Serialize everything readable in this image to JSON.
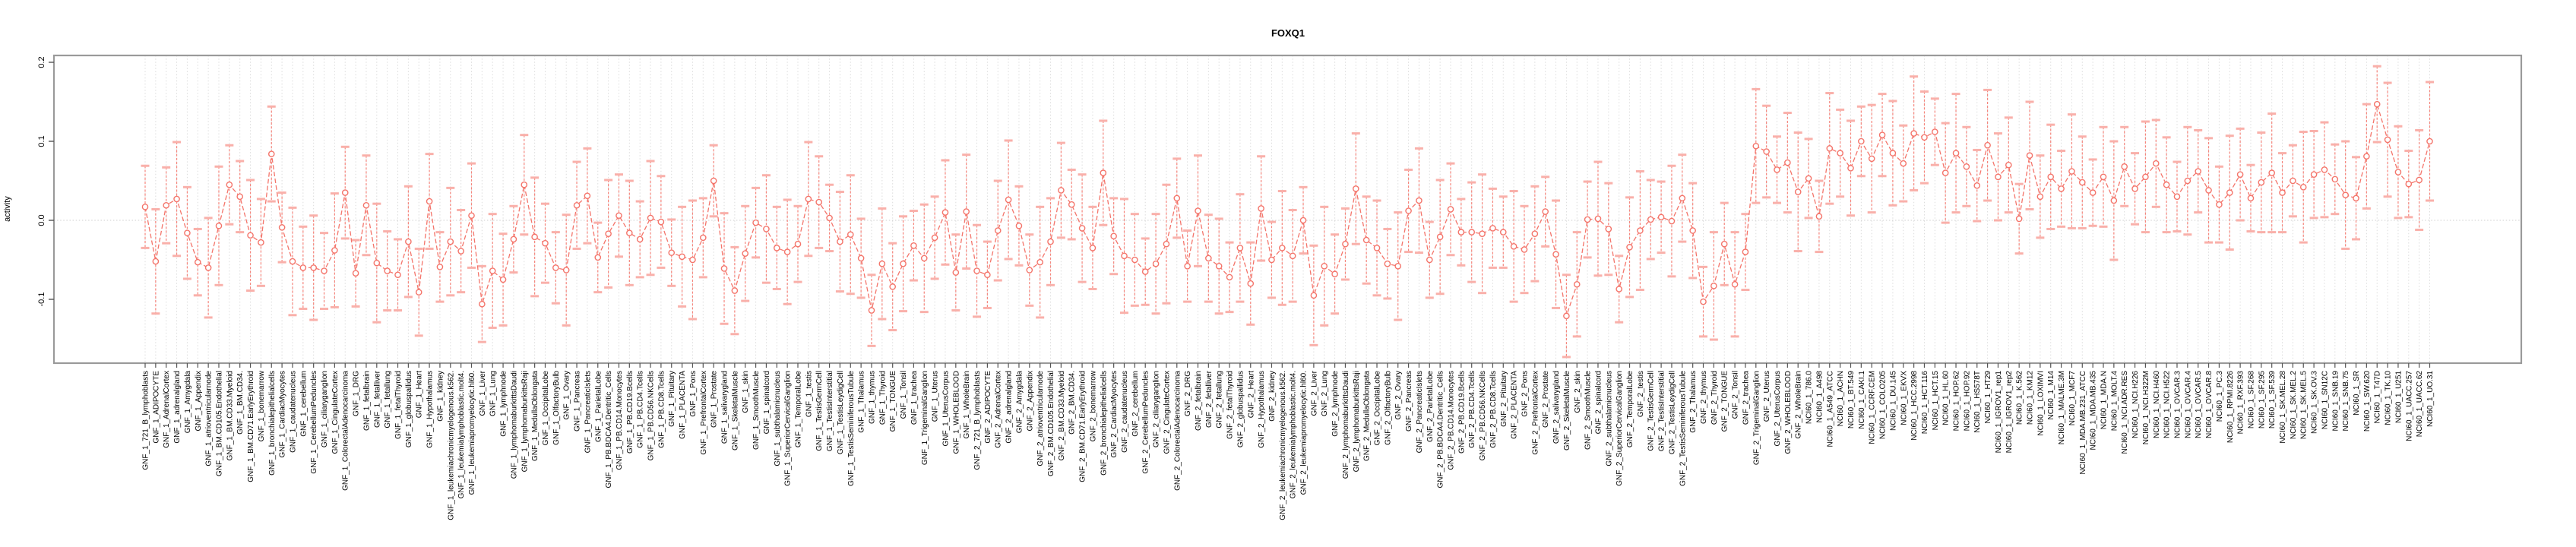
{
  "title": "FOXQ1",
  "chart_data": {
    "type": "scatter",
    "title": "FOXQ1",
    "xlabel": "",
    "ylabel": "activity",
    "ylim": [
      -0.18,
      0.21
    ],
    "yticks": [
      0.2,
      0.1,
      0.0,
      -0.1
    ],
    "ytick_labels": [
      "0.2",
      "0.1",
      "0.0",
      "-0.1"
    ],
    "grid": "dotted vertical gridline at every category; dotted horizontal line at y=0",
    "legend": "none",
    "marker": "open-circle with dashed error bars and capped whiskers, connected by line",
    "point_color": "#f4756b",
    "error_cap_color": "#f9b0aa",
    "error_line_color": "#f6867d",
    "grid_color": "#dcdcdc",
    "border_color": "#9a9a9a",
    "categories": [
      "GNF_1_721_B_lymphoblasts",
      "GNF_1_ADIPOCYTE",
      "GNF_1_AdrenalCortex",
      "GNF_1_adrenalgland",
      "GNF_1_Amygdala",
      "GNF_1_Appendix",
      "GNF_1_atrioventricularnode",
      "GNF_1_BM.CD105.Endothelial",
      "GNF_1_BM.CD33.Myeloid",
      "GNF_1_BM.CD34.",
      "GNF_1_BM.CD71.EarlyErythroid",
      "GNF_1_bonemarrow",
      "GNF_1_bronchialepithelialcells",
      "GNF_1_CardiacMyocytes",
      "GNF_1_caudatenucleus",
      "GNF_1_cerebellum",
      "GNF_1_CerebellumPeduncles",
      "GNF_1_ciliaryganglion",
      "GNF_1_CingulateCortex",
      "GNF_1_ColorectalAdenocarcinoma",
      "GNF_1_DRG",
      "GNF_1_fetalbrain",
      "GNF_1_fetalliver",
      "GNF_1_fetallung",
      "GNF_1_fetalThyroid",
      "GNF_1_globuspallidus",
      "GNF_1_Heart",
      "GNF_1_Hypothalamus",
      "GNF_1_kidney",
      "GNF_1_leukemiachronicmyelogenous.k562.",
      "GNF_1_leukemialymphoblastic.molt4.",
      "GNF_1_leukemiapromyelocytic.hl60.",
      "GNF_1_Liver",
      "GNF_1_Lung",
      "GNF_1_lymphnode",
      "GNF_1_lymphomaburkittsDaudi",
      "GNF_1_lymphomaburkittsRaji",
      "GNF_1_MedullaOblongata",
      "GNF_1_OccipitalLobe",
      "GNF_1_OlfactoryBulb",
      "GNF_1_Ovary",
      "GNF_1_Pancreas",
      "GNF_1_PancreaticIslets",
      "GNF_1_ParietalLobe",
      "GNF_1_PB.BDCA4.Dentritic_Cells",
      "GNF_1_PB.CD14.Monocytes",
      "GNF_1_PB.CD19.Bcells",
      "GNF_1_PB.CD4.Tcells",
      "GNF_1_PB.CD56.NKCells",
      "GNF_1_PB.CD8.Tcells",
      "GNF_1_Pituitary",
      "GNF_1_PLACENTA",
      "GNF_1_Pons",
      "GNF_1_PrefrontalCortex",
      "GNF_1_Prostate",
      "GNF_1_salivarygland",
      "GNF_1_SkeletalMuscle",
      "GNF_1_skin",
      "GNF_1_SmoothMuscle",
      "GNF_1_spinalcord",
      "GNF_1_subthalamicnucleus",
      "GNF_1_SuperiorCervicalGanglion",
      "GNF_1_TemporalLobe",
      "GNF_1_testis",
      "GNF_1_TestisGermCell",
      "GNF_1_TestisInterstitial",
      "GNF_1_TestisLeydigCell",
      "GNF_1_TestisSeminiferousTubule",
      "GNF_1_Thalamus",
      "GNF_1_thymus",
      "GNF_1_Thyroid",
      "GNF_1_TONGUE",
      "GNF_1_Tonsil",
      "GNF_1_trachea",
      "GNF_1_TrigeminalGanglion",
      "GNF_1_Uterus",
      "GNF_1_UterusCorpus",
      "GNF_1_WHOLEBLOOD",
      "GNF_1_WholeBrain",
      "GNF_2_721_B_lymphoblasts",
      "GNF_2_ADIPOCYTE",
      "GNF_2_AdrenalCortex",
      "GNF_2_adrenalgland",
      "GNF_2_Amygdala",
      "GNF_2_Appendix",
      "GNF_2_atrioventricularnode",
      "GNF_2_BM.CD105.Endothelial",
      "GNF_2_BM.CD33.Myeloid",
      "GNF_2_BM.CD34.",
      "GNF_2_BM.CD71.EarlyErythroid",
      "GNF_2_bonemarrow",
      "GNF_2_bronchialepithelialcells",
      "GNF_2_CardiacMyocytes",
      "GNF_2_caudatenucleus",
      "GNF_2_cerebellum",
      "GNF_2_CerebellumPeduncles",
      "GNF_2_ciliaryganglion",
      "GNF_2_CingulateCortex",
      "GNF_2_ColorectalAdenocarcinoma",
      "GNF_2_DRG",
      "GNF_2_fetalbrain",
      "GNF_2_fetalliver",
      "GNF_2_fetallung",
      "GNF_2_fetalThyroid",
      "GNF_2_globuspallidus",
      "GNF_2_Heart",
      "GNF_2_Hypothalamus",
      "GNF_2_kidney",
      "GNF_2_leukemiachronicmyelogenous.k562.",
      "GNF_2_leukemialymphoblastic.molt4.",
      "GNF_2_leukemiapromyelocytic.hl60.",
      "GNF_2_Liver",
      "GNF_2_Lung",
      "GNF_2_lymphnode",
      "GNF_2_lymphomaburkittsDaudi",
      "GNF_2_lymphomaburkittsRaji",
      "GNF_2_MedullaOblongata",
      "GNF_2_OccipitalLobe",
      "GNF_2_OlfactoryBulb",
      "GNF_2_Ovary",
      "GNF_2_Pancreas",
      "GNF_2_PancreaticIslets",
      "GNF_2_ParietalLobe",
      "GNF_2_PB.BDCA4.Dentritic_Cells",
      "GNF_2_PB.CD14.Monocytes",
      "GNF_2_PB.CD19.Bcells",
      "GNF_2_PB.CD4.Tcells",
      "GNF_2_PB.CD56.NKCells",
      "GNF_2_PB.CD8.Tcells",
      "GNF_2_Pituitary",
      "GNF_2_PLACENTA",
      "GNF_2_Pons",
      "GNF_2_PrefrontalCortex",
      "GNF_2_Prostate",
      "GNF_2_salivarygland",
      "GNF_2_SkeletalMuscle",
      "GNF_2_skin",
      "GNF_2_SmoothMuscle",
      "GNF_2_spinalcord",
      "GNF_2_subthalamicnucleus",
      "GNF_2_SuperiorCervicalGanglion",
      "GNF_2_TemporalLobe",
      "GNF_2_testis",
      "GNF_2_TestisGermCell",
      "GNF_2_TestisInterstitial",
      "GNF_2_TestisLeydigCell",
      "GNF_2_TestisSeminiferousTubule",
      "GNF_2_Thalamus",
      "GNF_2_thymus",
      "GNF_2_Thyroid",
      "GNF_2_TONGUE",
      "GNF_2_Tonsil",
      "GNF_2_trachea",
      "GNF_2_TrigeminalGanglion",
      "GNF_2_Uterus",
      "GNF_2_UterusCorpus",
      "GNF_2_WHOLEBLOOD",
      "GNF_2_WholeBrain",
      "NCI60_1_786.0",
      "NCI60_1_A498",
      "NCI60_1_A549_ATCC",
      "NCI60_1_ACHN",
      "NCI60_1_BT.549",
      "NCI60_1_CAKI.1",
      "NCI60_1_CCRF.CEM",
      "NCI60_1_COLO205",
      "NCI60_1_DU.145",
      "NCI60_1_EKVX",
      "NCI60_1_HCC.2998",
      "NCI60_1_HCT.116",
      "NCI60_1_HCT.15",
      "NCI60_1_HL.60",
      "NCI60_1_HOP.62",
      "NCI60_1_HOP.92",
      "NCI60_1_HS578T",
      "NCI60_1_HT29",
      "NCI60_1_IGROV1_rep1",
      "NCI60_1_IGROV1_rep2",
      "NCI60_1_K.562",
      "NCI60_1_KM12",
      "NCI60_1_LOXIMVI",
      "NCI60_1_M14",
      "NCI60_1_MALME.3M",
      "NCI60_1_MCF7",
      "NCI60_1_MDA.MB.231_ATCC",
      "NCI60_1_MDA.MB.435",
      "NCI60_1_MDA.N",
      "NCI60_1_MOLT.4",
      "NCI60_1_NCI.ADR.RES",
      "NCI60_1_NCI.H226",
      "NCI60_1_NCI.H322M",
      "NCI60_1_NCI.H460",
      "NCI60_1_NCI.H522",
      "NCI60_1_OVCAR.3",
      "NCI60_1_OVCAR.4",
      "NCI60_1_OVCAR.5",
      "NCI60_1_OVCAR.8",
      "NCI60_1_PC.3",
      "NCI60_1_RPMI.8226",
      "NCI60_1_RXF.393",
      "NCI60_1_SF.268",
      "NCI60_1_SF.295",
      "NCI60_1_SF.539",
      "NCI60_1_SK.MEL.28",
      "NCI60_1_SK.MEL.2",
      "NCI60_1_SK.MEL.5",
      "NCI60_1_SK.OV.3",
      "NCI60_1_SN12C",
      "NCI60_1_SNB.19",
      "NCI60_1_SNB.75",
      "NCI60_1_SR",
      "NCI60_1_SW.620",
      "NCI60_1_T47D",
      "NCI60_1_TK.10",
      "NCI60_1_U251",
      "NCI60_1_UACC.257",
      "NCI60_1_UACC.62",
      "NCI60_1_UO.31"
    ],
    "values": [
      0.017,
      -0.052,
      0.019,
      0.027,
      -0.016,
      -0.053,
      -0.06,
      -0.007,
      0.045,
      0.03,
      -0.019,
      -0.028,
      0.084,
      -0.009,
      -0.052,
      -0.06,
      -0.06,
      -0.064,
      -0.038,
      0.035,
      -0.067,
      0.019,
      -0.054,
      -0.064,
      -0.069,
      -0.027,
      -0.091,
      0.024,
      -0.059,
      -0.027,
      -0.039,
      0.006,
      -0.106,
      -0.064,
      -0.075,
      -0.024,
      0.045,
      -0.021,
      -0.029,
      -0.06,
      -0.063,
      0.019,
      0.031,
      -0.047,
      -0.017,
      0.006,
      -0.016,
      -0.024,
      0.003,
      -0.002,
      -0.041,
      -0.046,
      -0.05,
      -0.022,
      0.05,
      -0.061,
      -0.089,
      -0.042,
      -0.003,
      -0.011,
      -0.035,
      -0.04,
      -0.03,
      0.027,
      0.023,
      0.003,
      -0.027,
      -0.018,
      -0.048,
      -0.114,
      -0.055,
      -0.084,
      -0.055,
      -0.032,
      -0.048,
      -0.022,
      0.01,
      -0.066,
      0.011,
      -0.064,
      -0.069,
      -0.013,
      0.026,
      -0.007,
      -0.063,
      -0.053,
      -0.027,
      0.038,
      0.02,
      -0.01,
      -0.035,
      0.06,
      -0.02,
      -0.045,
      -0.05,
      -0.065,
      -0.055,
      -0.03,
      0.028,
      -0.058,
      0.012,
      -0.048,
      -0.058,
      -0.072,
      -0.035,
      -0.08,
      0.015,
      -0.05,
      -0.035,
      -0.045,
      0.0,
      -0.095,
      -0.058,
      -0.068,
      -0.03,
      0.04,
      -0.025,
      -0.035,
      -0.055,
      -0.058,
      0.012,
      0.025,
      -0.05,
      -0.021,
      0.014,
      -0.015,
      -0.015,
      -0.017,
      -0.01,
      -0.015,
      -0.033,
      -0.037,
      -0.017,
      0.011,
      -0.043,
      -0.121,
      -0.081,
      0.001,
      0.002,
      -0.011,
      -0.087,
      -0.034,
      -0.013,
      0.001,
      0.004,
      -0.001,
      0.028,
      -0.013,
      -0.103,
      -0.083,
      -0.03,
      -0.081,
      -0.04,
      0.094,
      0.087,
      0.064,
      0.073,
      0.036,
      0.053,
      0.005,
      0.091,
      0.085,
      0.066,
      0.1,
      0.078,
      0.108,
      0.085,
      0.072,
      0.11,
      0.105,
      0.112,
      0.06,
      0.085,
      0.068,
      0.044,
      0.095,
      0.055,
      0.07,
      0.002,
      0.082,
      0.03,
      0.055,
      0.04,
      0.062,
      0.048,
      0.035,
      0.055,
      0.025,
      0.068,
      0.04,
      0.055,
      0.072,
      0.045,
      0.03,
      0.05,
      0.062,
      0.038,
      0.02,
      0.035,
      0.058,
      0.028,
      0.048,
      0.06,
      0.035,
      0.05,
      0.042,
      0.058,
      0.064,
      0.052,
      0.032,
      0.028,
      0.081,
      0.147,
      0.102,
      0.061,
      0.046,
      0.051,
      0.1
    ],
    "error_pattern": [
      0.052,
      0.066,
      0.048,
      0.072,
      0.058,
      0.042,
      0.063,
      0.075,
      0.05,
      0.045,
      0.07,
      0.055,
      0.06,
      0.044,
      0.068
    ]
  }
}
